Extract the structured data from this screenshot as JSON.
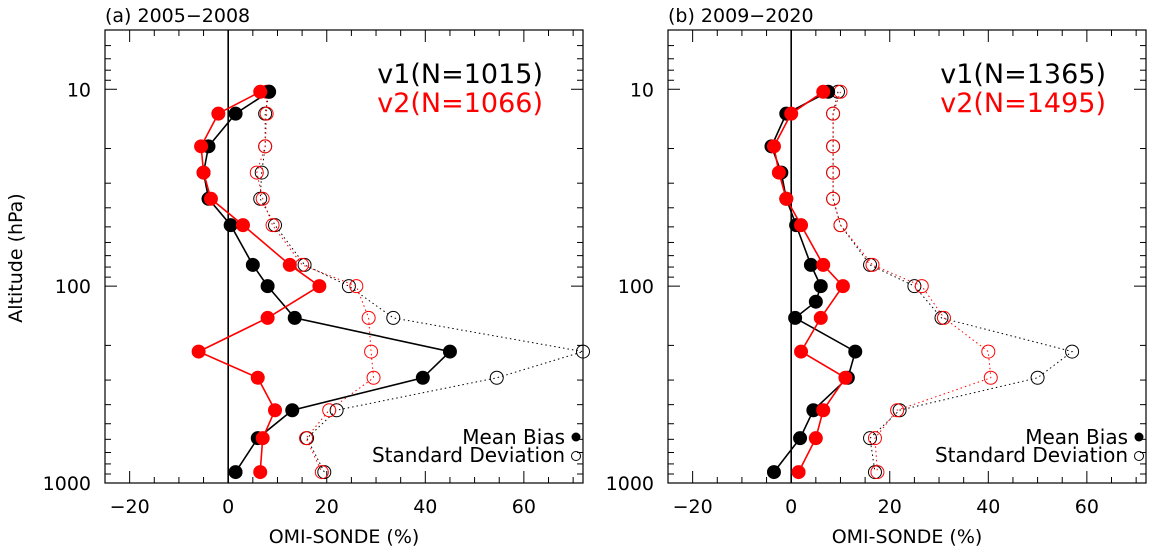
{
  "figure": {
    "ylabel": "Altitude (hPa)",
    "xlabel": "OMI-SONDE (%)",
    "xticks": [
      -20,
      0,
      20,
      40,
      60
    ],
    "yticks": [
      10,
      100,
      1000
    ],
    "xlim": [
      -25,
      72
    ],
    "ylim": [
      1000,
      5
    ],
    "yscale": "log",
    "legend_mean": "Mean Bias",
    "legend_std": "Standard Deviation",
    "legend_position": "bottom-right",
    "colors": {
      "v1": "#000000",
      "v2": "#ff0000"
    }
  },
  "chart_data": [
    {
      "type": "line",
      "title": "(a) 2005−2008",
      "xlabel": "OMI-SONDE (%)",
      "ylabel": "Altitude (hPa)",
      "xlim": [
        -25,
        72
      ],
      "ylim": [
        1000,
        5
      ],
      "yscale": "log",
      "annotations": [
        "v1(N=1015)",
        "v2(N=1066)"
      ],
      "series": [
        {
          "name": "v1",
          "kind": "mean_bias",
          "color": "#000000",
          "points": [
            [
              8.3,
              10.3
            ],
            [
              1.5,
              13.3
            ],
            [
              -4,
              19.5
            ],
            [
              -5,
              26.5
            ],
            [
              -4,
              36
            ],
            [
              0.5,
              49
            ],
            [
              5,
              78
            ],
            [
              8,
              100
            ],
            [
              13.5,
              145
            ],
            [
              45,
              215
            ],
            [
              39.5,
              292
            ],
            [
              13,
              427
            ],
            [
              6,
              592
            ],
            [
              1.5,
              880
            ]
          ]
        },
        {
          "name": "v2",
          "kind": "mean_bias",
          "color": "#ff0000",
          "points": [
            [
              6.5,
              10.3
            ],
            [
              -2,
              13.3
            ],
            [
              -5.5,
              19.5
            ],
            [
              -5,
              26.5
            ],
            [
              -3.5,
              36
            ],
            [
              3,
              49
            ],
            [
              12.5,
              78
            ],
            [
              18.5,
              100
            ],
            [
              8,
              145
            ],
            [
              -6,
              215
            ],
            [
              6,
              292
            ],
            [
              9.5,
              427
            ],
            [
              7,
              592
            ],
            [
              6.5,
              880
            ]
          ]
        },
        {
          "name": "v1",
          "kind": "standard_deviation",
          "color": "#000000",
          "points": [
            [
              8.3,
              10.3
            ],
            [
              7.5,
              13.3
            ],
            [
              7.5,
              19.5
            ],
            [
              6.8,
              26.5
            ],
            [
              6.5,
              36
            ],
            [
              9.5,
              49
            ],
            [
              15.5,
              78
            ],
            [
              24.5,
              100
            ],
            [
              33.5,
              145
            ],
            [
              72,
              215
            ],
            [
              54.5,
              292
            ],
            [
              22,
              427
            ],
            [
              16,
              592
            ],
            [
              19.5,
              880
            ]
          ]
        },
        {
          "name": "v2",
          "kind": "standard_deviation",
          "color": "#ff0000",
          "points": [
            [
              7.8,
              10.3
            ],
            [
              7.8,
              13.3
            ],
            [
              7.5,
              19.5
            ],
            [
              5.8,
              26.5
            ],
            [
              7,
              36
            ],
            [
              9,
              49
            ],
            [
              15,
              78
            ],
            [
              26,
              100
            ],
            [
              28.5,
              145
            ],
            [
              29,
              215
            ],
            [
              29.5,
              292
            ],
            [
              20.5,
              427
            ],
            [
              15.8,
              592
            ],
            [
              19,
              880
            ]
          ]
        }
      ]
    },
    {
      "type": "line",
      "title": "(b) 2009−2020",
      "xlabel": "OMI-SONDE (%)",
      "ylabel": "Altitude (hPa)",
      "xlim": [
        -25,
        72
      ],
      "ylim": [
        1000,
        5
      ],
      "yscale": "log",
      "annotations": [
        "v1(N=1365)",
        "v2(N=1495)"
      ],
      "series": [
        {
          "name": "v1",
          "kind": "mean_bias",
          "color": "#000000",
          "points": [
            [
              7.5,
              10.3
            ],
            [
              -1,
              13.3
            ],
            [
              -4,
              19.5
            ],
            [
              -2,
              26.5
            ],
            [
              -1,
              36
            ],
            [
              1,
              49
            ],
            [
              4,
              78
            ],
            [
              6,
              100
            ],
            [
              5,
              120
            ],
            [
              0.8,
              145
            ],
            [
              13,
              215
            ],
            [
              11.5,
              292
            ],
            [
              4.5,
              427
            ],
            [
              1.8,
              592
            ],
            [
              -3.5,
              880
            ]
          ]
        },
        {
          "name": "v2",
          "kind": "mean_bias",
          "color": "#ff0000",
          "points": [
            [
              6.5,
              10.3
            ],
            [
              0,
              13.3
            ],
            [
              -3.5,
              19.5
            ],
            [
              -2.5,
              26.5
            ],
            [
              -1,
              36
            ],
            [
              2,
              49
            ],
            [
              6.5,
              78
            ],
            [
              10.5,
              100
            ],
            [
              6,
              145
            ],
            [
              2,
              215
            ],
            [
              11,
              292
            ],
            [
              6.5,
              427
            ],
            [
              5,
              592
            ],
            [
              1.5,
              880
            ]
          ]
        },
        {
          "name": "v1",
          "kind": "standard_deviation",
          "color": "#000000",
          "points": [
            [
              9.5,
              10.3
            ],
            [
              8.5,
              13.3
            ],
            [
              8.5,
              19.5
            ],
            [
              8.5,
              26.5
            ],
            [
              8.5,
              36
            ],
            [
              10,
              49
            ],
            [
              16,
              78
            ],
            [
              25,
              100
            ],
            [
              30.5,
              145
            ],
            [
              57,
              215
            ],
            [
              50,
              292
            ],
            [
              22,
              427
            ],
            [
              16,
              592
            ],
            [
              17,
              880
            ]
          ]
        },
        {
          "name": "v2",
          "kind": "standard_deviation",
          "color": "#ff0000",
          "points": [
            [
              10,
              10.3
            ],
            [
              8.5,
              13.3
            ],
            [
              8.5,
              19.5
            ],
            [
              8.5,
              26.5
            ],
            [
              8.5,
              36
            ],
            [
              10,
              49
            ],
            [
              16.5,
              78
            ],
            [
              26.5,
              100
            ],
            [
              31,
              145
            ],
            [
              40,
              215
            ],
            [
              40.5,
              292
            ],
            [
              21.5,
              427
            ],
            [
              17,
              592
            ],
            [
              17.5,
              880
            ]
          ]
        }
      ]
    }
  ]
}
